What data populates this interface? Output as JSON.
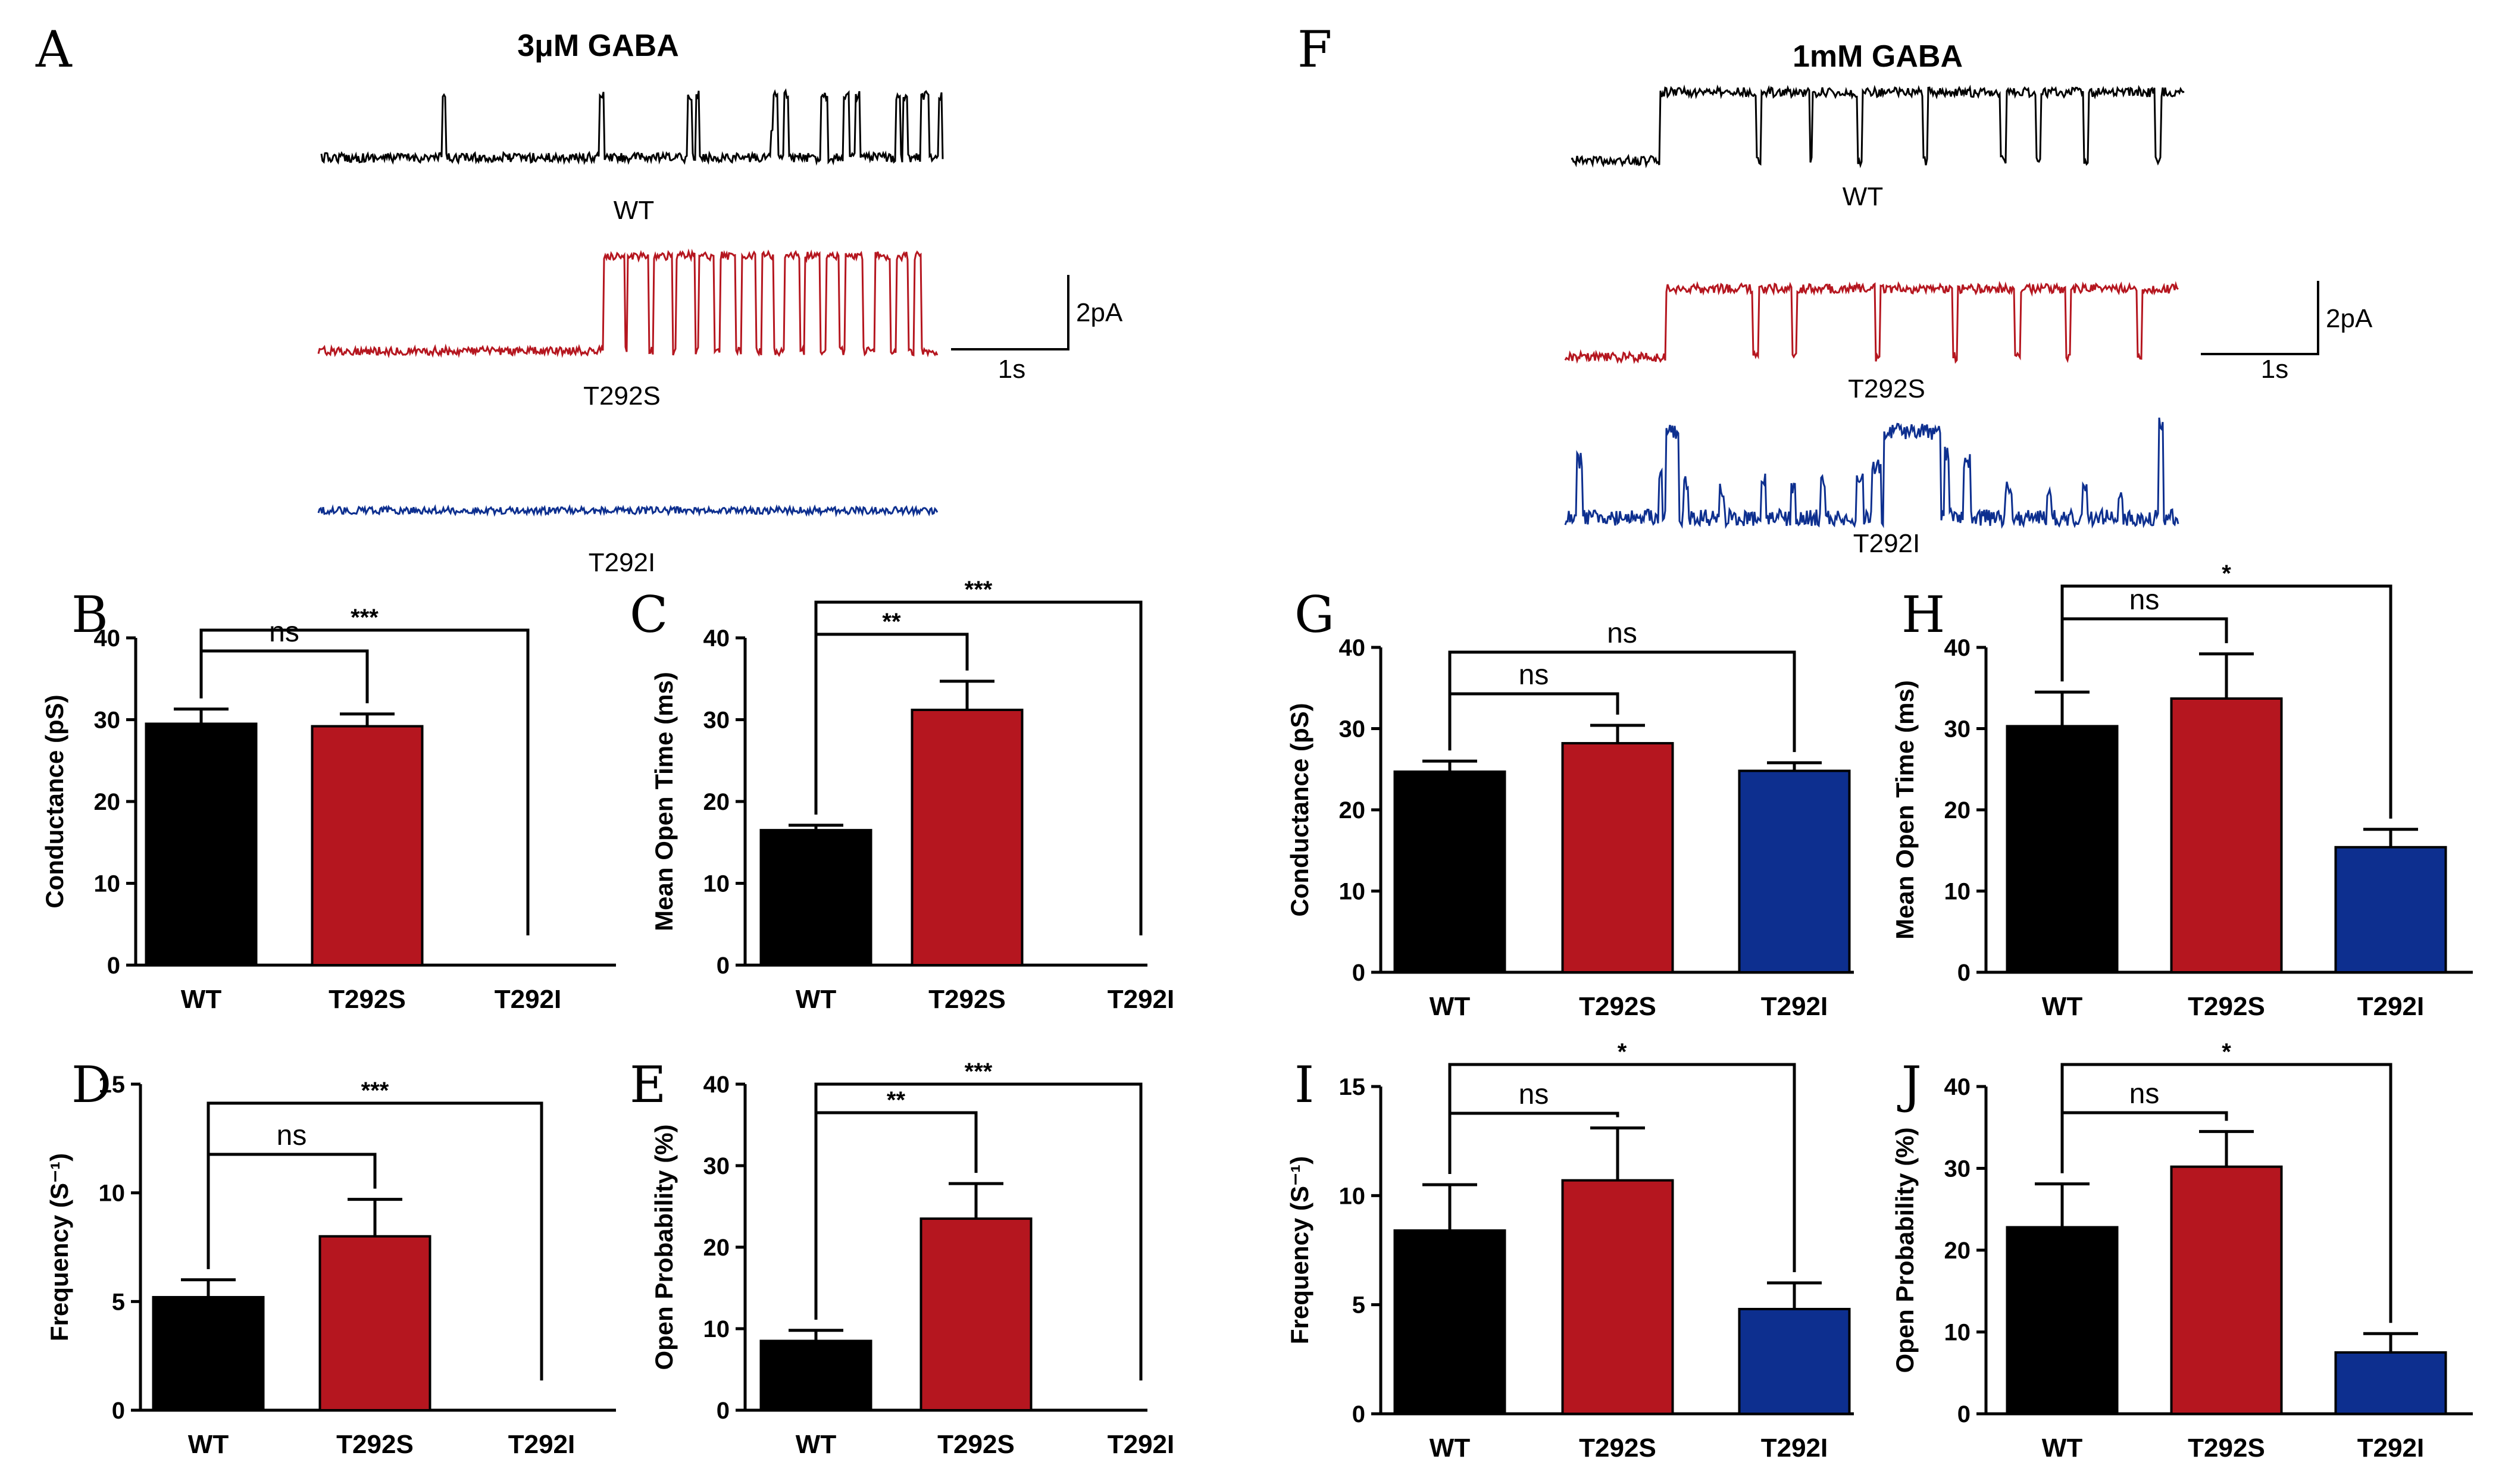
{
  "panels": {
    "A": {
      "letter": "A",
      "title": "3μM GABA"
    },
    "F": {
      "letter": "F",
      "title": "1mM GABA"
    }
  },
  "traces": {
    "A": [
      "WT",
      "T292S",
      "T292I"
    ],
    "F": [
      "WT",
      "T292S",
      "T292I"
    ]
  },
  "scale_bar": {
    "amplitude": "2pA",
    "time": "1s"
  },
  "colors": {
    "WT": "#000000",
    "T292S": "#b5161f",
    "T292I": "#0d2f8f"
  },
  "chart_data": [
    {
      "panel": "B",
      "type": "bar",
      "ylabel": "Conductance (pS)",
      "categories": [
        "WT",
        "T292S",
        "T292I"
      ],
      "values": [
        29.5,
        29.2,
        0
      ],
      "errors": [
        1.8,
        1.5,
        0
      ],
      "ylim": [
        0,
        40
      ],
      "yticks": [
        0,
        10,
        20,
        30,
        40
      ],
      "sig": [
        {
          "from": 0,
          "to": 1,
          "label": "ns"
        },
        {
          "from": 0,
          "to": 2,
          "label": "***"
        }
      ]
    },
    {
      "panel": "C",
      "type": "bar",
      "ylabel": "Mean Open Time (ms)",
      "categories": [
        "WT",
        "T292S",
        "T292I"
      ],
      "values": [
        16.5,
        31.2,
        0
      ],
      "errors": [
        0.6,
        3.5,
        0
      ],
      "ylim": [
        0,
        40
      ],
      "yticks": [
        0,
        10,
        20,
        30,
        40
      ],
      "sig": [
        {
          "from": 0,
          "to": 1,
          "label": "**"
        },
        {
          "from": 0,
          "to": 2,
          "label": "***"
        }
      ]
    },
    {
      "panel": "D",
      "type": "bar",
      "ylabel": "Frequency (S⁻¹)",
      "categories": [
        "WT",
        "T292S",
        "T292I"
      ],
      "values": [
        5.2,
        8.0,
        0
      ],
      "errors": [
        0.8,
        1.7,
        0
      ],
      "ylim": [
        0,
        15
      ],
      "yticks": [
        0,
        5,
        10,
        15
      ],
      "sig": [
        {
          "from": 0,
          "to": 1,
          "label": "ns"
        },
        {
          "from": 0,
          "to": 2,
          "label": "***"
        }
      ]
    },
    {
      "panel": "E",
      "type": "bar",
      "ylabel": "Open Probability (%)",
      "categories": [
        "WT",
        "T292S",
        "T292I"
      ],
      "values": [
        8.5,
        23.5,
        0
      ],
      "errors": [
        1.3,
        4.3,
        0
      ],
      "ylim": [
        0,
        40
      ],
      "yticks": [
        0,
        10,
        20,
        30,
        40
      ],
      "sig": [
        {
          "from": 0,
          "to": 1,
          "label": "**"
        },
        {
          "from": 0,
          "to": 2,
          "label": "***"
        }
      ]
    },
    {
      "panel": "G",
      "type": "bar",
      "ylabel": "Conductance (pS)",
      "categories": [
        "WT",
        "T292S",
        "T292I"
      ],
      "values": [
        24.7,
        28.2,
        24.8
      ],
      "errors": [
        1.3,
        2.2,
        1.0
      ],
      "ylim": [
        0,
        40
      ],
      "yticks": [
        0,
        10,
        20,
        30,
        40
      ],
      "sig": [
        {
          "from": 0,
          "to": 1,
          "label": "ns"
        },
        {
          "from": 0,
          "to": 2,
          "label": "ns"
        }
      ]
    },
    {
      "panel": "H",
      "type": "bar",
      "ylabel": "Mean Open Time (ms)",
      "categories": [
        "WT",
        "T292S",
        "T292I"
      ],
      "values": [
        30.3,
        33.7,
        15.4
      ],
      "errors": [
        4.2,
        5.5,
        2.2
      ],
      "ylim": [
        0,
        40
      ],
      "yticks": [
        0,
        10,
        20,
        30,
        40
      ],
      "sig": [
        {
          "from": 0,
          "to": 1,
          "label": "ns"
        },
        {
          "from": 0,
          "to": 2,
          "label": "*"
        }
      ]
    },
    {
      "panel": "I",
      "type": "bar",
      "ylabel": "Frequency (S⁻¹)",
      "categories": [
        "WT",
        "T292S",
        "T292I"
      ],
      "values": [
        8.4,
        10.7,
        4.8
      ],
      "errors": [
        2.1,
        2.4,
        1.2
      ],
      "ylim": [
        0,
        15
      ],
      "yticks": [
        0,
        5,
        10,
        15
      ],
      "sig": [
        {
          "from": 0,
          "to": 1,
          "label": "ns"
        },
        {
          "from": 0,
          "to": 2,
          "label": "*"
        }
      ]
    },
    {
      "panel": "J",
      "type": "bar",
      "ylabel": "Open Probability (%)",
      "categories": [
        "WT",
        "T292S",
        "T292I"
      ],
      "values": [
        22.8,
        30.2,
        7.5
      ],
      "errors": [
        5.3,
        4.3,
        2.3
      ],
      "ylim": [
        0,
        40
      ],
      "yticks": [
        0,
        10,
        20,
        30,
        40
      ],
      "sig": [
        {
          "from": 0,
          "to": 1,
          "label": "ns"
        },
        {
          "from": 0,
          "to": 2,
          "label": "*"
        }
      ]
    }
  ]
}
